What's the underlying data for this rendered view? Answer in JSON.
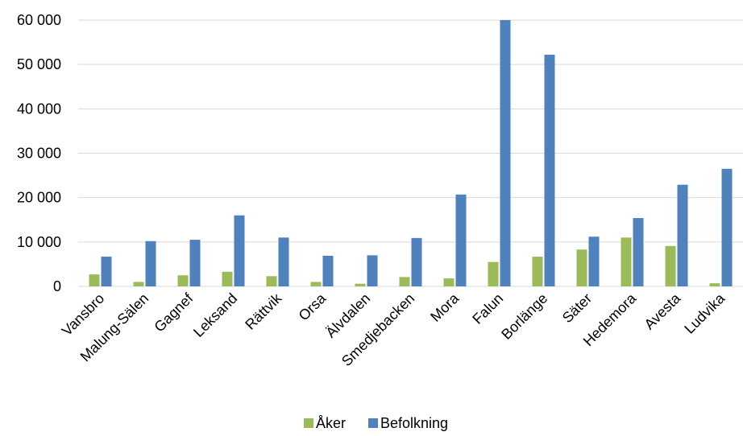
{
  "chart_data": {
    "type": "bar",
    "title": "",
    "xlabel": "",
    "ylabel": "",
    "categories": [
      "Vansbro",
      "Malung-Sälen",
      "Gagnef",
      "Leksand",
      "Rättvik",
      "Orsa",
      "Älvdalen",
      "Smedjebacken",
      "Mora",
      "Falun",
      "Borlänge",
      "Säter",
      "Hedemora",
      "Avesta",
      "Ludvika"
    ],
    "series": [
      {
        "name": "Åker",
        "color": "#9bbb59",
        "values": [
          2700,
          1000,
          2500,
          3300,
          2300,
          1000,
          600,
          2100,
          1800,
          5500,
          6700,
          8300,
          11000,
          9100,
          700
        ]
      },
      {
        "name": "Befolkning",
        "color": "#4f81bd",
        "values": [
          6700,
          10200,
          10500,
          16000,
          11000,
          6900,
          7000,
          10900,
          20700,
          60000,
          52200,
          11200,
          15400,
          22900,
          26500
        ]
      }
    ],
    "ylim": [
      0,
      60000
    ],
    "yticks": [
      0,
      10000,
      20000,
      30000,
      40000,
      50000,
      60000
    ],
    "ytick_labels": [
      "0",
      "10 000",
      "20 000",
      "30 000",
      "40 000",
      "50 000",
      "60 000"
    ],
    "grid": true,
    "legend": "bottom"
  }
}
